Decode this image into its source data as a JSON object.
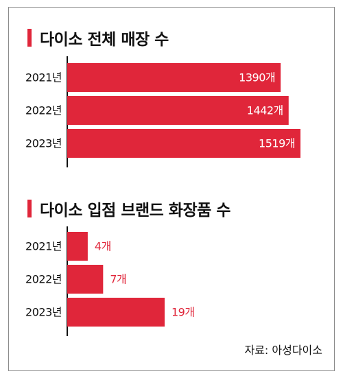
{
  "chart_data": [
    {
      "type": "bar",
      "orientation": "horizontal",
      "title": "다이소 전체 매장 수",
      "categories": [
        "2021년",
        "2022년",
        "2023년"
      ],
      "values": [
        1390,
        1442,
        1519
      ],
      "data_labels": [
        "1390개",
        "1442개",
        "1519개"
      ],
      "label_position": "inside-end"
    },
    {
      "type": "bar",
      "orientation": "horizontal",
      "title": "다이소 입점 브랜드 화장품 수",
      "categories": [
        "2021년",
        "2022년",
        "2023년"
      ],
      "values": [
        4,
        7,
        19
      ],
      "data_labels": [
        "4개",
        "7개",
        "19개"
      ],
      "label_position": "outside-end"
    }
  ],
  "source": "자료: 아성다이소",
  "colors": {
    "bar": "#e0263a",
    "accent": "#e0263a",
    "inside_label": "#ffffff",
    "outside_label": "#e0263a",
    "text": "#111111"
  }
}
